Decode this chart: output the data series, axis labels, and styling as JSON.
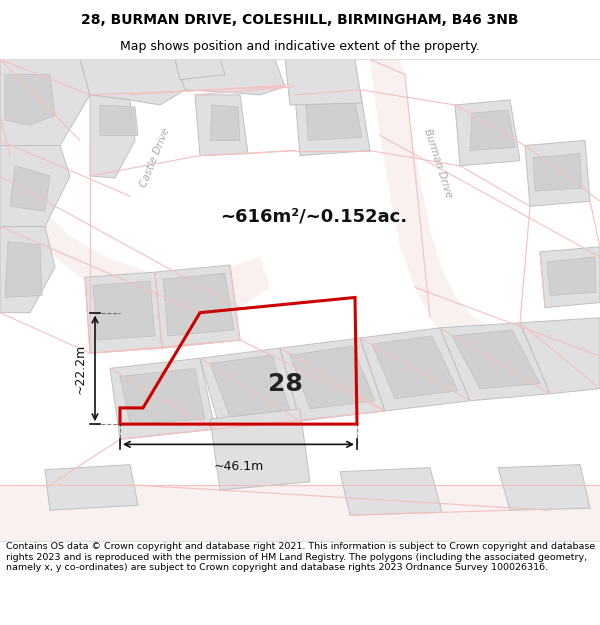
{
  "title_line1": "28, BURMAN DRIVE, COLESHILL, BIRMINGHAM, B46 3NB",
  "title_line2": "Map shows position and indicative extent of the property.",
  "footer_text": "Contains OS data © Crown copyright and database right 2021. This information is subject to Crown copyright and database rights 2023 and is reproduced with the permission of HM Land Registry. The polygons (including the associated geometry, namely x, y co-ordinates) are subject to Crown copyright and database rights 2023 Ordnance Survey 100026316.",
  "area_label": "~616m²/~0.152ac.",
  "plot_number": "28",
  "dim_width": "~46.1m",
  "dim_height": "~22.2m",
  "map_bg": "#ffffff",
  "plot_edge": "#cc0000",
  "plot_fill": "#ffffff",
  "road_line": "#f5c0c0",
  "road_line2": "#e8a8a8",
  "building_fill": "#e0e0e0",
  "building_edge": "#c0c0c0",
  "road_fill": "#f8f0f0",
  "white": "#ffffff",
  "figsize": [
    6.0,
    6.25
  ],
  "dpi": 100,
  "title_fontsize": 10,
  "subtitle_fontsize": 9,
  "footer_fontsize": 6.8
}
